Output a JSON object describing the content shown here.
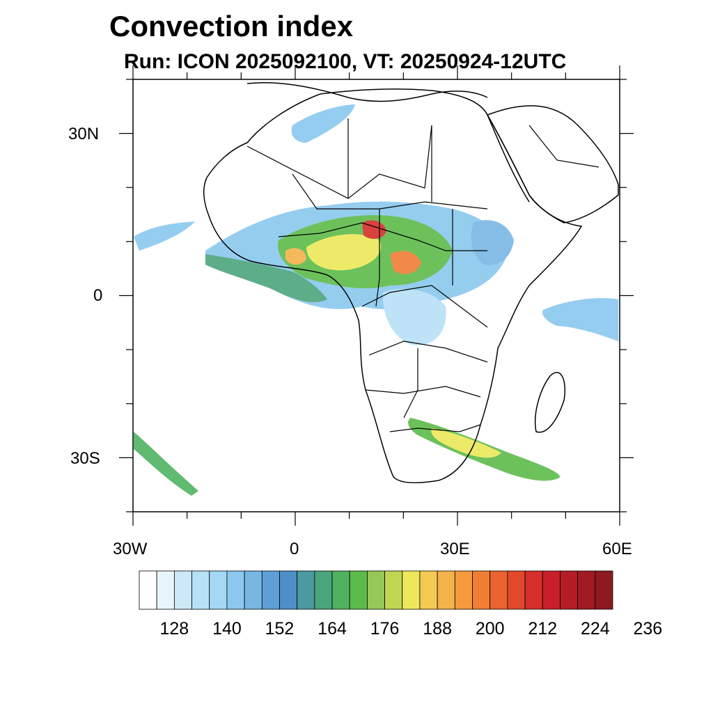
{
  "map": {
    "title": "Convection index",
    "subtitle": "Run: ICON 2025092100,  VT: 20250924-12UTC",
    "lat_labels": [
      "30N",
      "0",
      "30S"
    ],
    "lon_labels": [
      "30W",
      "0",
      "30E",
      "60E"
    ],
    "extent": {
      "lon_min": -30,
      "lon_max": 60,
      "lat_min": -40,
      "lat_max": 40
    }
  },
  "colorbar": {
    "colors": [
      "#ffffff",
      "#e9f5fc",
      "#cde9f8",
      "#b8e1f6",
      "#a2d8f4",
      "#8ac8ee",
      "#78b6e4",
      "#5f9fd6",
      "#4f8fc8",
      "#4b9aa0",
      "#4ba57c",
      "#4fb260",
      "#5dbb4a",
      "#95c856",
      "#c0d653",
      "#ece85a",
      "#f4c954",
      "#f4b24b",
      "#f69a3e",
      "#f07e35",
      "#ea6330",
      "#e2492c",
      "#d62e2b",
      "#c8202a",
      "#b41d26",
      "#a11a22",
      "#8c1a1f"
    ],
    "labels": [
      "128",
      "140",
      "152",
      "164",
      "176",
      "188",
      "200",
      "212",
      "224",
      "236"
    ]
  }
}
